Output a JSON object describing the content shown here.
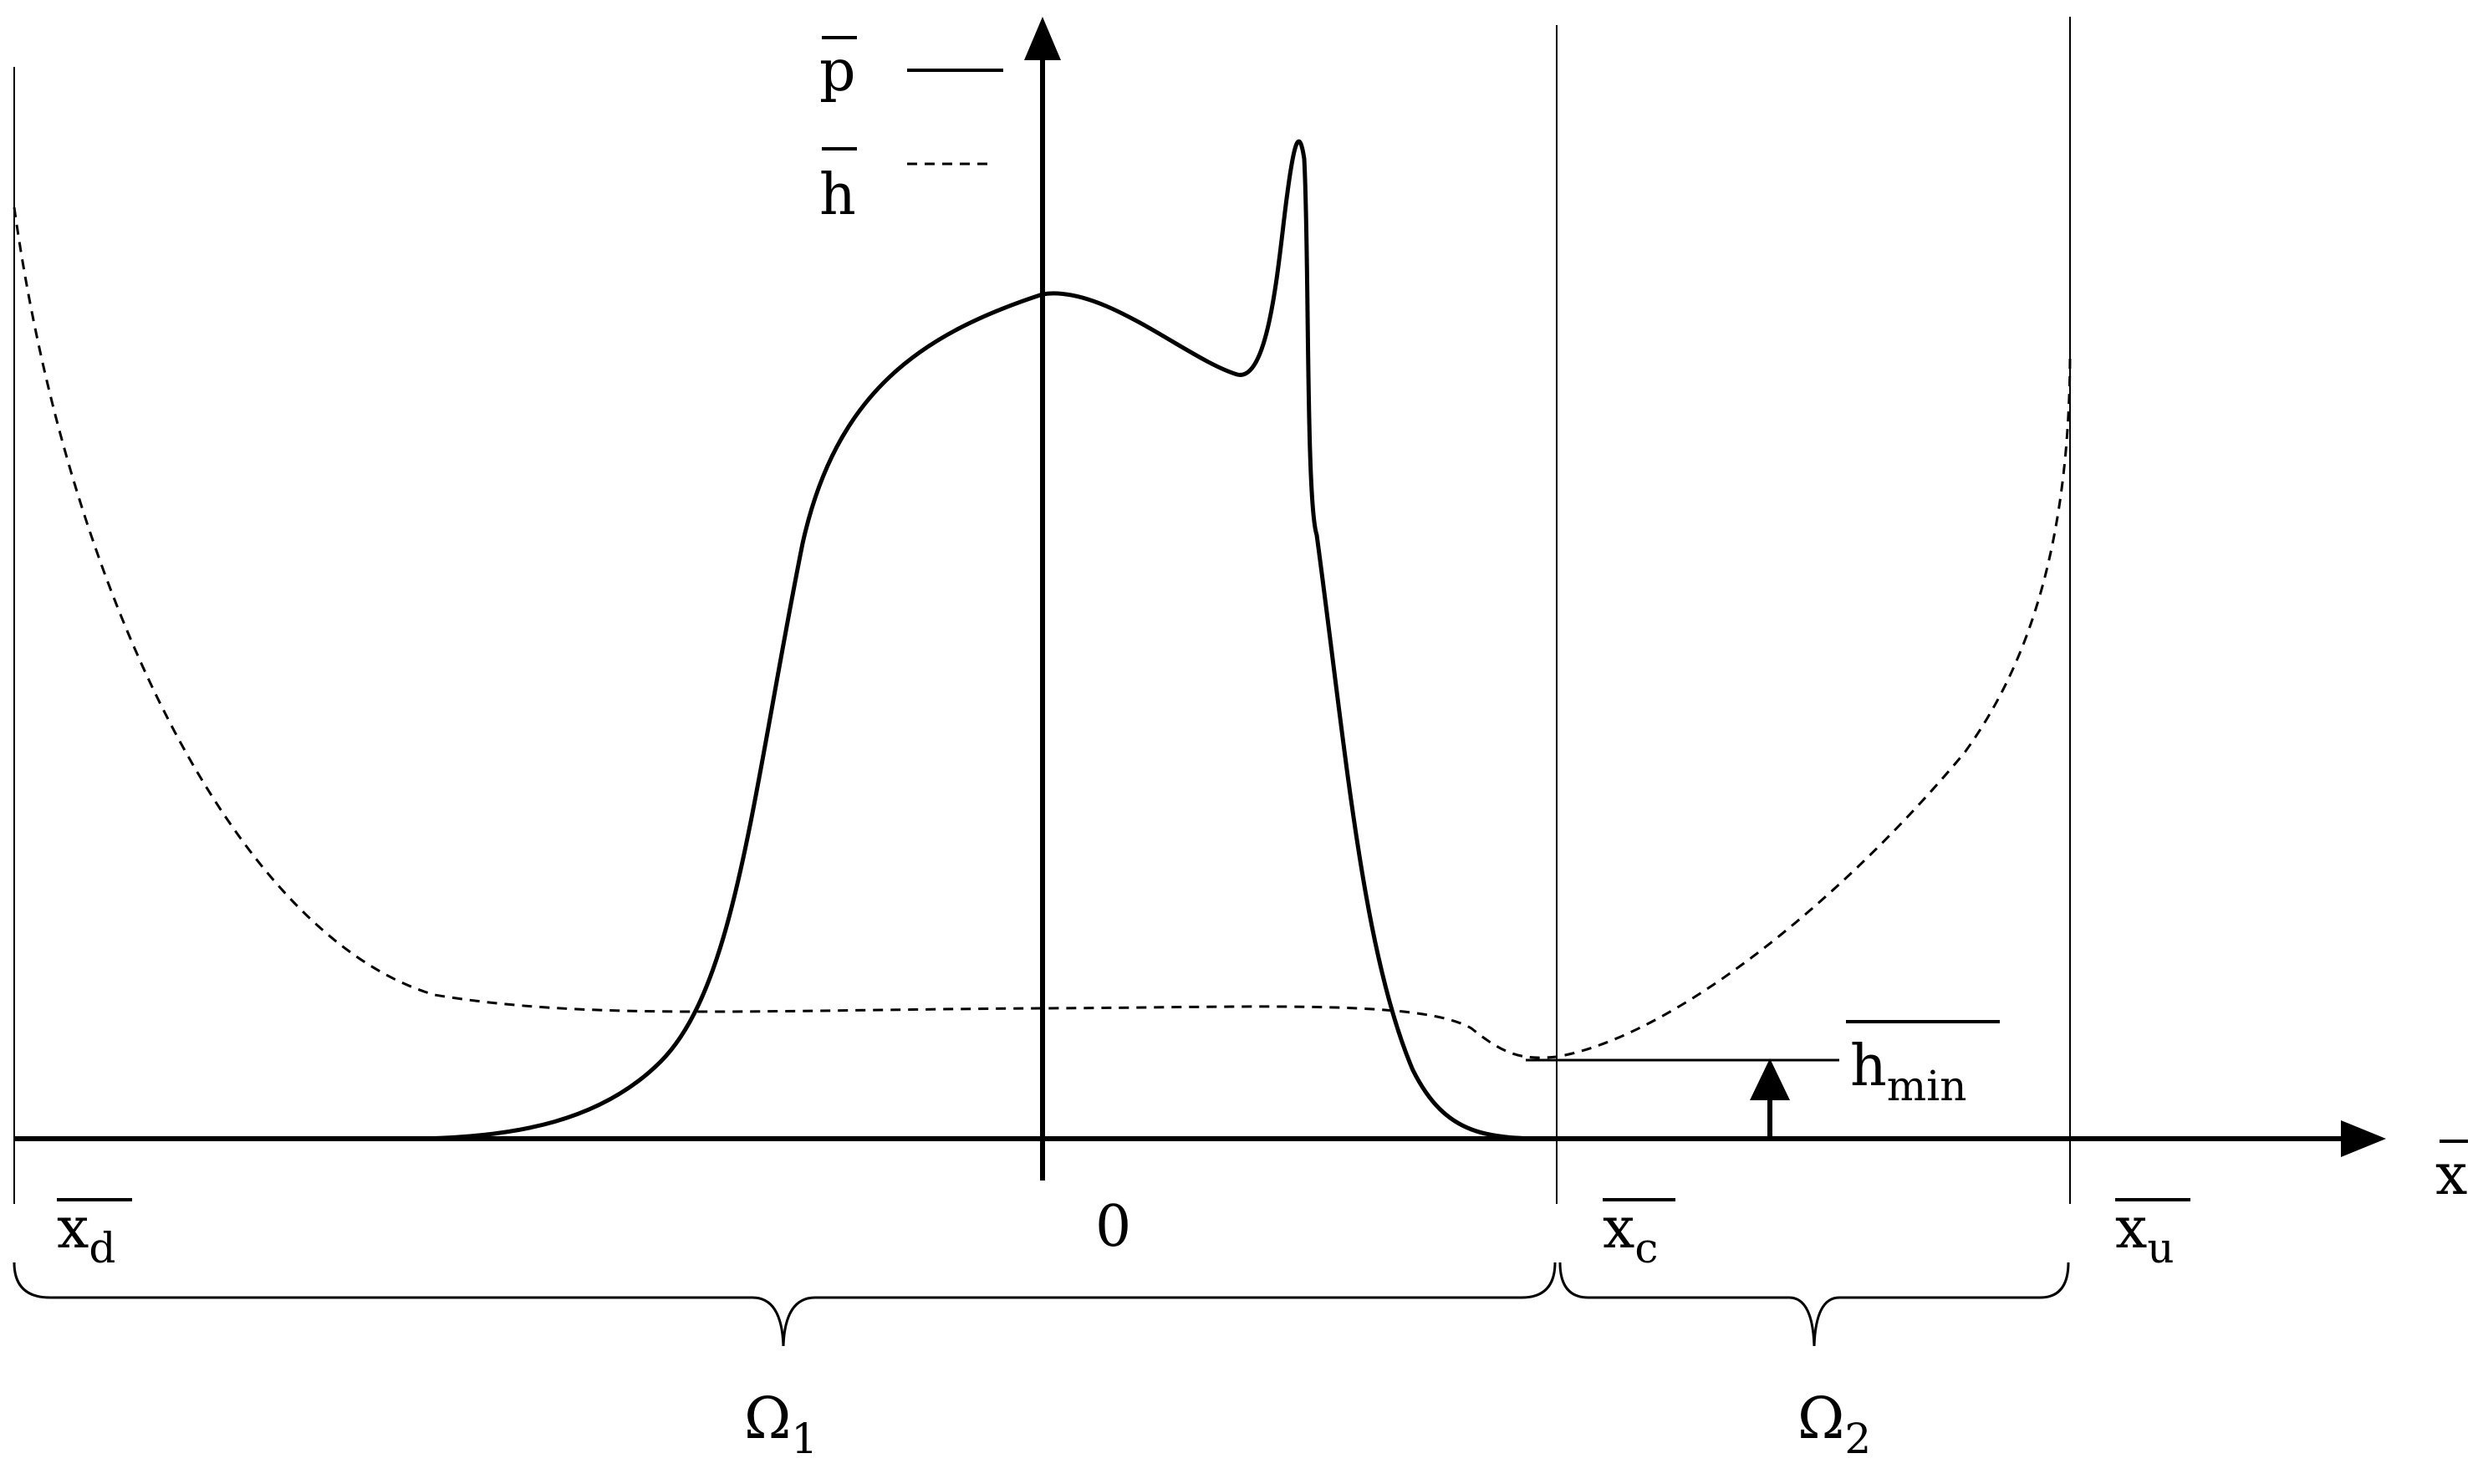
{
  "legend": {
    "pressure": {
      "symbol": "p",
      "style": "solid"
    },
    "film": {
      "symbol": "h",
      "style": "dashed"
    }
  },
  "axis": {
    "x_label": "x",
    "origin_label": "0"
  },
  "boundaries": {
    "x_d": {
      "base": "x",
      "sub": "d"
    },
    "x_c": {
      "base": "x",
      "sub": "c"
    },
    "x_u": {
      "base": "x",
      "sub": "u"
    }
  },
  "h_min": {
    "base": "h",
    "sub": "min"
  },
  "domains": {
    "omega1": {
      "base": "Ω",
      "sub": "1"
    },
    "omega2": {
      "base": "Ω",
      "sub": "2"
    }
  },
  "colors": {
    "ink": "#000000",
    "background": "#ffffff"
  }
}
